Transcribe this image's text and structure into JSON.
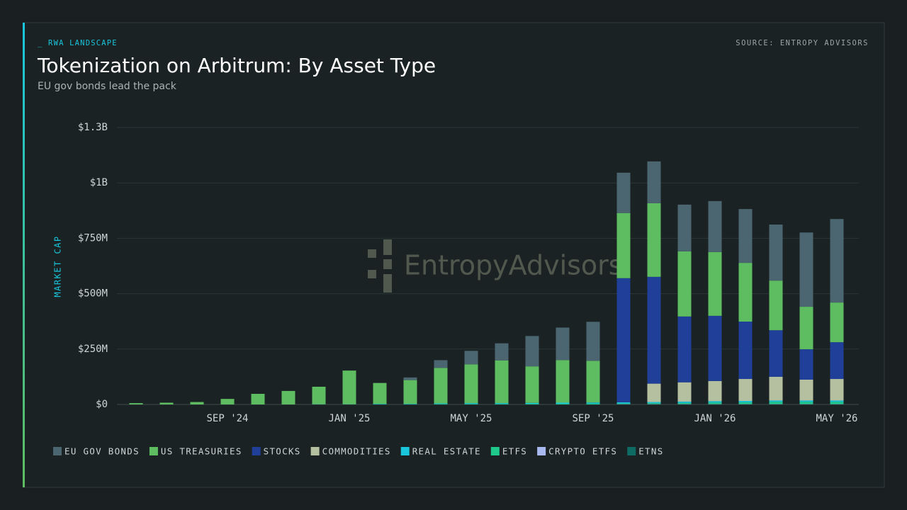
{
  "chart_data": {
    "type": "stacked_bar",
    "kicker": "_ RWA LANDSCAPE",
    "source": "SOURCE: ENTROPY ADVISORS",
    "title": "Tokenization on Arbitrum: By Asset Type",
    "subtitle": "EU gov bonds lead the pack",
    "y_label": "MARKET CAP",
    "watermark": "EntropyAdvisors",
    "categories": [
      null,
      null,
      null,
      "SEP '24",
      null,
      null,
      null,
      "JAN '25",
      null,
      null,
      null,
      "MAY '25",
      null,
      null,
      null,
      "SEP '25",
      null,
      null,
      null,
      "JAN '26",
      null,
      null,
      null,
      "MAY '26"
    ],
    "series": [
      {
        "name": "EU GOV BONDS",
        "color": "#4b6670",
        "values": [
          0,
          0,
          0,
          0,
          0,
          0,
          0,
          0,
          0,
          12000000,
          35000000,
          61000000,
          77000000,
          137000000,
          147000000,
          176000000,
          182000000,
          189000000,
          211000000,
          230000000,
          243000000,
          253000000,
          335000000,
          377000000
        ]
      },
      {
        "name": "US TREASURIES",
        "color": "#5dbd60",
        "values": [
          6000000,
          8000000,
          11000000,
          25000000,
          48000000,
          61000000,
          79000000,
          152000000,
          94000000,
          107000000,
          160000000,
          175000000,
          193000000,
          165000000,
          192000000,
          188000000,
          294000000,
          332000000,
          294000000,
          288000000,
          265000000,
          224000000,
          192000000,
          179000000
        ]
      },
      {
        "name": "STOCKS",
        "color": "#1f3f99",
        "values": [
          0,
          0,
          0,
          0,
          0,
          0,
          0,
          0,
          0,
          0,
          0,
          0,
          0,
          0,
          0,
          0,
          560000000,
          482000000,
          297000000,
          294000000,
          259000000,
          210000000,
          137000000,
          166000000
        ]
      },
      {
        "name": "COMMODITIES",
        "color": "#b5c0a0",
        "values": [
          0,
          0,
          0,
          0,
          0,
          0,
          0,
          0,
          0,
          0,
          0,
          0,
          0,
          0,
          0,
          0,
          0,
          83000000,
          87000000,
          91000000,
          99000000,
          107000000,
          94000000,
          97000000
        ]
      },
      {
        "name": "REAL ESTATE",
        "color": "#19c6dc",
        "values": [
          0,
          0,
          0,
          0,
          0,
          0,
          1000000,
          1000000,
          2000000,
          2000000,
          3000000,
          4000000,
          4000000,
          4000000,
          5000000,
          5000000,
          5000000,
          5000000,
          6000000,
          6000000,
          6000000,
          6000000,
          6000000,
          6000000
        ]
      },
      {
        "name": "ETFS",
        "color": "#1fc98b",
        "values": [
          0,
          0,
          0,
          0,
          0,
          0,
          0,
          0,
          1000000,
          1000000,
          2000000,
          2000000,
          2000000,
          3000000,
          3000000,
          4000000,
          3000000,
          4000000,
          5000000,
          7000000,
          8000000,
          10000000,
          10000000,
          10000000
        ]
      },
      {
        "name": "CRYPTO ETFS",
        "color": "#a8b9f0",
        "values": [
          0,
          0,
          0,
          0,
          0,
          0,
          0,
          0,
          0,
          0,
          0,
          0,
          0,
          0,
          0,
          0,
          1000000,
          1000000,
          1000000,
          1000000,
          1000000,
          1000000,
          1000000,
          1000000
        ]
      },
      {
        "name": "ETNS",
        "color": "#0e6b63",
        "values": [
          0,
          0,
          0,
          0,
          0,
          0,
          0,
          0,
          0,
          0,
          0,
          0,
          0,
          0,
          0,
          0,
          1000000,
          1000000,
          1000000,
          1000000,
          1000000,
          1000000,
          1000000,
          1000000
        ]
      }
    ],
    "ylim": [
      0,
      1250000000
    ],
    "yticks": [
      {
        "value": 0,
        "label": "$0"
      },
      {
        "value": 250000000,
        "label": "$250M"
      },
      {
        "value": 500000000,
        "label": "$500M"
      },
      {
        "value": 750000000,
        "label": "$750M"
      },
      {
        "value": 1000000000,
        "label": "$1B"
      },
      {
        "value": 1250000000,
        "label": "$1.3B"
      }
    ],
    "grid": true,
    "legend": "bottom-left"
  }
}
